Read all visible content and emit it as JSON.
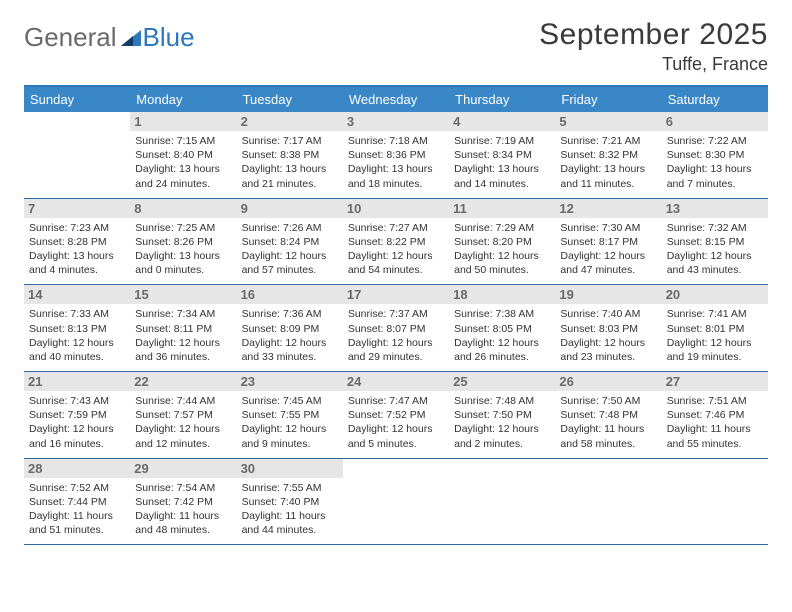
{
  "logo": {
    "general": "General",
    "blue": "Blue"
  },
  "header": {
    "title": "September 2025",
    "location": "Tuffe, France"
  },
  "colors": {
    "header_bg": "#3a87c8",
    "rule": "#2f6aa3",
    "daynum_bg": "#e6e6e6",
    "daynum_fg": "#6a6a6a",
    "body_text": "#333333",
    "logo_gray": "#6a6a6a",
    "logo_blue": "#2f77bb"
  },
  "weekdays": [
    "Sunday",
    "Monday",
    "Tuesday",
    "Wednesday",
    "Thursday",
    "Friday",
    "Saturday"
  ],
  "weeks": [
    [
      null,
      {
        "n": "1",
        "sr": "7:15 AM",
        "ss": "8:40 PM",
        "dl": "13 hours and 24 minutes."
      },
      {
        "n": "2",
        "sr": "7:17 AM",
        "ss": "8:38 PM",
        "dl": "13 hours and 21 minutes."
      },
      {
        "n": "3",
        "sr": "7:18 AM",
        "ss": "8:36 PM",
        "dl": "13 hours and 18 minutes."
      },
      {
        "n": "4",
        "sr": "7:19 AM",
        "ss": "8:34 PM",
        "dl": "13 hours and 14 minutes."
      },
      {
        "n": "5",
        "sr": "7:21 AM",
        "ss": "8:32 PM",
        "dl": "13 hours and 11 minutes."
      },
      {
        "n": "6",
        "sr": "7:22 AM",
        "ss": "8:30 PM",
        "dl": "13 hours and 7 minutes."
      }
    ],
    [
      {
        "n": "7",
        "sr": "7:23 AM",
        "ss": "8:28 PM",
        "dl": "13 hours and 4 minutes."
      },
      {
        "n": "8",
        "sr": "7:25 AM",
        "ss": "8:26 PM",
        "dl": "13 hours and 0 minutes."
      },
      {
        "n": "9",
        "sr": "7:26 AM",
        "ss": "8:24 PM",
        "dl": "12 hours and 57 minutes."
      },
      {
        "n": "10",
        "sr": "7:27 AM",
        "ss": "8:22 PM",
        "dl": "12 hours and 54 minutes."
      },
      {
        "n": "11",
        "sr": "7:29 AM",
        "ss": "8:20 PM",
        "dl": "12 hours and 50 minutes."
      },
      {
        "n": "12",
        "sr": "7:30 AM",
        "ss": "8:17 PM",
        "dl": "12 hours and 47 minutes."
      },
      {
        "n": "13",
        "sr": "7:32 AM",
        "ss": "8:15 PM",
        "dl": "12 hours and 43 minutes."
      }
    ],
    [
      {
        "n": "14",
        "sr": "7:33 AM",
        "ss": "8:13 PM",
        "dl": "12 hours and 40 minutes."
      },
      {
        "n": "15",
        "sr": "7:34 AM",
        "ss": "8:11 PM",
        "dl": "12 hours and 36 minutes."
      },
      {
        "n": "16",
        "sr": "7:36 AM",
        "ss": "8:09 PM",
        "dl": "12 hours and 33 minutes."
      },
      {
        "n": "17",
        "sr": "7:37 AM",
        "ss": "8:07 PM",
        "dl": "12 hours and 29 minutes."
      },
      {
        "n": "18",
        "sr": "7:38 AM",
        "ss": "8:05 PM",
        "dl": "12 hours and 26 minutes."
      },
      {
        "n": "19",
        "sr": "7:40 AM",
        "ss": "8:03 PM",
        "dl": "12 hours and 23 minutes."
      },
      {
        "n": "20",
        "sr": "7:41 AM",
        "ss": "8:01 PM",
        "dl": "12 hours and 19 minutes."
      }
    ],
    [
      {
        "n": "21",
        "sr": "7:43 AM",
        "ss": "7:59 PM",
        "dl": "12 hours and 16 minutes."
      },
      {
        "n": "22",
        "sr": "7:44 AM",
        "ss": "7:57 PM",
        "dl": "12 hours and 12 minutes."
      },
      {
        "n": "23",
        "sr": "7:45 AM",
        "ss": "7:55 PM",
        "dl": "12 hours and 9 minutes."
      },
      {
        "n": "24",
        "sr": "7:47 AM",
        "ss": "7:52 PM",
        "dl": "12 hours and 5 minutes."
      },
      {
        "n": "25",
        "sr": "7:48 AM",
        "ss": "7:50 PM",
        "dl": "12 hours and 2 minutes."
      },
      {
        "n": "26",
        "sr": "7:50 AM",
        "ss": "7:48 PM",
        "dl": "11 hours and 58 minutes."
      },
      {
        "n": "27",
        "sr": "7:51 AM",
        "ss": "7:46 PM",
        "dl": "11 hours and 55 minutes."
      }
    ],
    [
      {
        "n": "28",
        "sr": "7:52 AM",
        "ss": "7:44 PM",
        "dl": "11 hours and 51 minutes."
      },
      {
        "n": "29",
        "sr": "7:54 AM",
        "ss": "7:42 PM",
        "dl": "11 hours and 48 minutes."
      },
      {
        "n": "30",
        "sr": "7:55 AM",
        "ss": "7:40 PM",
        "dl": "11 hours and 44 minutes."
      },
      null,
      null,
      null,
      null
    ]
  ],
  "labels": {
    "sunrise": "Sunrise: ",
    "sunset": "Sunset: ",
    "daylight": "Daylight: "
  }
}
